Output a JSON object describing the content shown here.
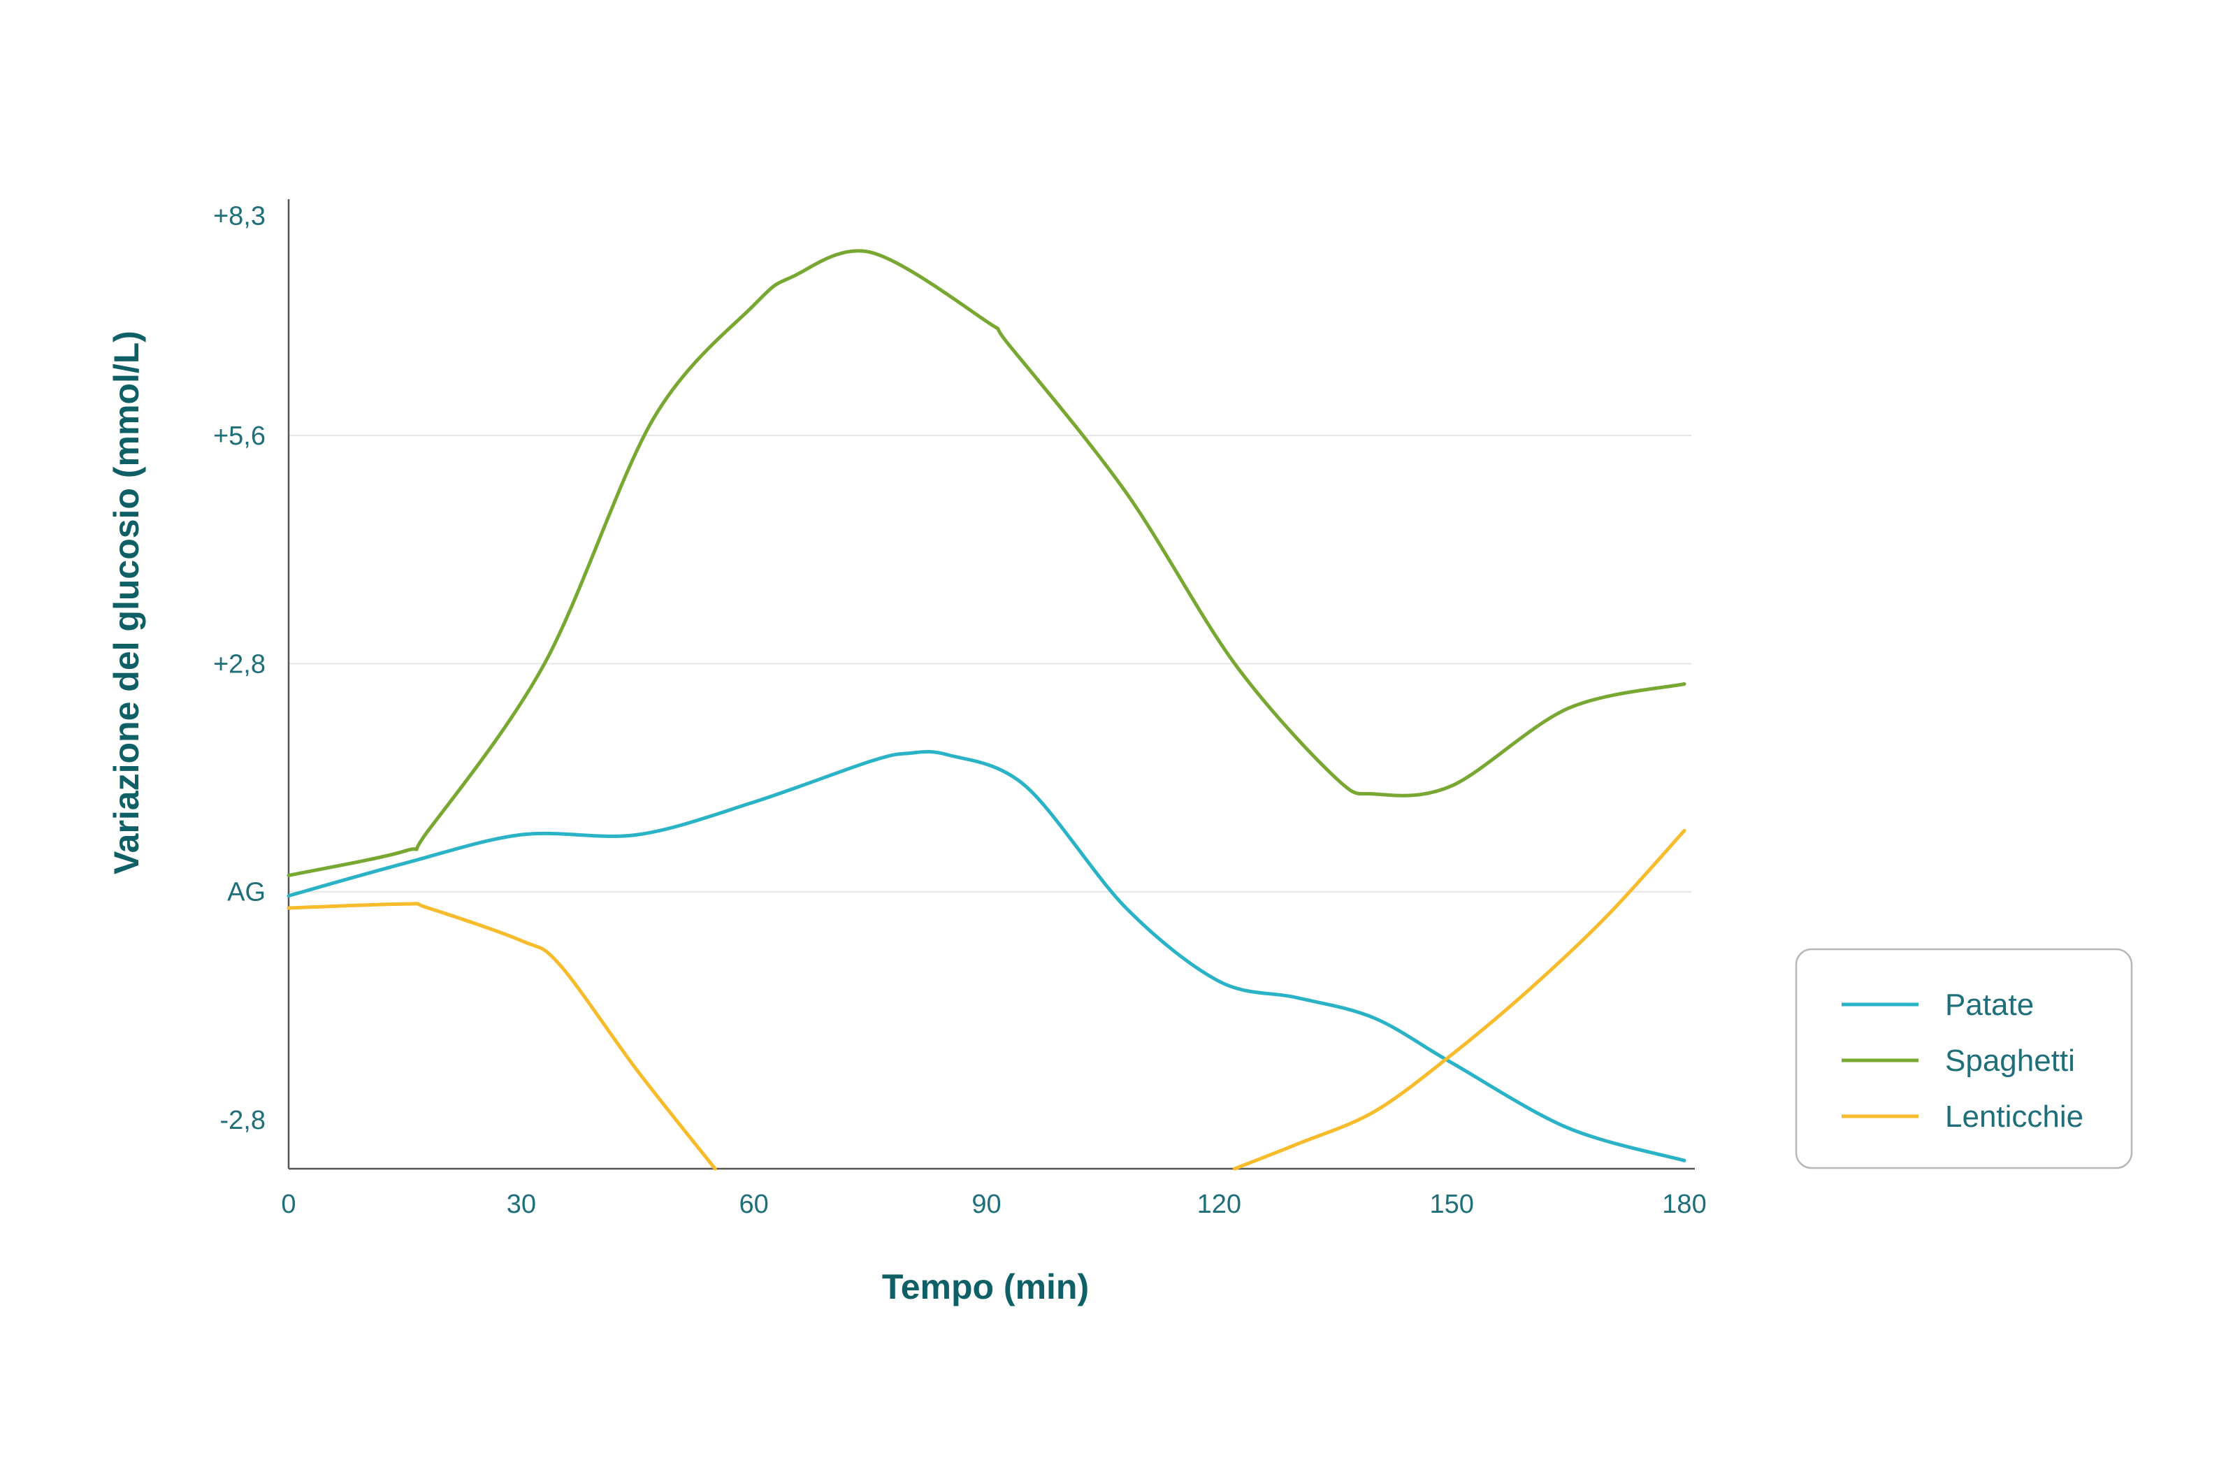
{
  "chart_data": {
    "type": "line",
    "title": "",
    "xlabel": "Tempo (min)",
    "ylabel": "Variazione del glucosio (mmol/L)",
    "x_ticks": [
      "0",
      "30",
      "60",
      "90",
      "120",
      "150",
      "180"
    ],
    "x_tick_values": [
      0,
      30,
      60,
      90,
      120,
      150,
      180
    ],
    "xlim": [
      0,
      180
    ],
    "y_ticks": [
      "+8,3",
      "+5,6",
      "+2,8",
      "AG",
      "-2,8"
    ],
    "y_tick_values": [
      8.3,
      5.6,
      2.8,
      0,
      -2.8
    ],
    "ylim": [
      -3.4,
      8.5
    ],
    "grid": "horizontal",
    "legend_position": "right",
    "series": [
      {
        "name": "Patate",
        "color": "#2ab3c6",
        "x": [
          0,
          15,
          30,
          45,
          60,
          75,
          80,
          85,
          95,
          108,
          120,
          130,
          140,
          150,
          165,
          180
        ],
        "y": [
          -0.05,
          0.35,
          0.7,
          0.7,
          1.1,
          1.6,
          1.7,
          1.68,
          1.3,
          -0.2,
          -1.1,
          -1.3,
          -1.55,
          -2.1,
          -2.9,
          -3.3
        ]
      },
      {
        "name": "Spaghetti",
        "color": "#78a832",
        "x": [
          0,
          15,
          18,
          33,
          47,
          60,
          65,
          75,
          90,
          93,
          108,
          122,
          135,
          140,
          150,
          165,
          180
        ],
        "y": [
          0.2,
          0.5,
          0.75,
          2.8,
          5.8,
          7.2,
          7.55,
          7.85,
          7.0,
          6.7,
          4.9,
          2.8,
          1.4,
          1.2,
          1.3,
          2.25,
          2.55
        ]
      },
      {
        "name": "Lenticchie",
        "color": "#f7bb2b",
        "segments": [
          {
            "x": [
              0,
              15,
              18,
              30,
              35,
              45,
              55
            ],
            "y": [
              -0.2,
              -0.15,
              -0.2,
              -0.6,
              -0.9,
              -2.2,
              -3.4
            ]
          },
          {
            "x": [
              122,
              130,
              140,
              150,
              160,
              170,
              180
            ],
            "y": [
              -3.4,
              -3.1,
              -2.7,
              -2.0,
              -1.2,
              -0.3,
              0.75
            ]
          }
        ]
      }
    ]
  }
}
